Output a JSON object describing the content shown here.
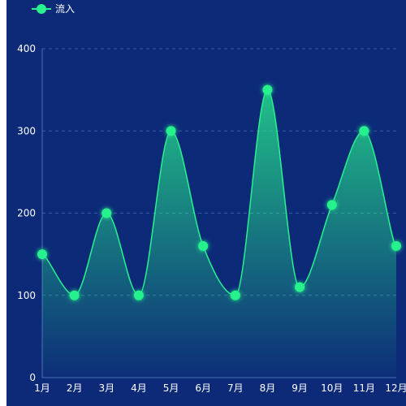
{
  "chart_data": {
    "type": "area",
    "categories": [
      "1月",
      "2月",
      "3月",
      "4月",
      "5月",
      "6月",
      "7月",
      "8月",
      "9月",
      "10月",
      "11月",
      "12月"
    ],
    "series": [
      {
        "name": "流入",
        "values": [
          150,
          100,
          200,
          100,
          300,
          160,
          100,
          350,
          110,
          210,
          300,
          160
        ],
        "color": "#28f28d"
      }
    ],
    "ylim": [
      0,
      400
    ],
    "yticks": [
      0,
      100,
      200,
      300,
      400
    ],
    "grid": true,
    "smooth": true,
    "legend_position": "top-left"
  },
  "colors": {
    "background": "#0c2a78",
    "grid": "#3a5aa0",
    "axis": "#4d6fb8",
    "line": "#28f28d",
    "point": "#28f28d"
  }
}
